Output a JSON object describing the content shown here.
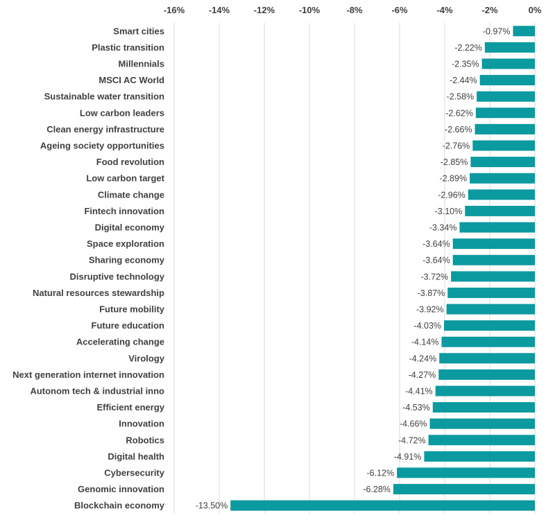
{
  "chart_data": {
    "type": "bar",
    "orientation": "horizontal",
    "categories": [
      "Smart cities",
      "Plastic transition",
      "Millennials",
      "MSCI AC World",
      "Sustainable water transition",
      "Low carbon leaders",
      "Clean energy infrastructure",
      "Ageing society opportunities",
      "Food revolution",
      "Low carbon target",
      "Climate change",
      "Fintech innovation",
      "Digital economy",
      "Space exploration",
      "Sharing economy",
      "Disruptive technology",
      "Natural resources stewardship",
      "Future mobility",
      "Future education",
      "Accelerating change",
      "Virology",
      "Next generation internet innovation",
      "Autonom tech & industrial inno",
      "Efficient energy",
      "Innovation",
      "Robotics",
      "Digital health",
      "Cybersecurity",
      "Genomic innovation",
      "Blockchain economy"
    ],
    "values": [
      -0.97,
      -2.22,
      -2.35,
      -2.44,
      -2.58,
      -2.62,
      -2.66,
      -2.76,
      -2.85,
      -2.89,
      -2.96,
      -3.1,
      -3.34,
      -3.64,
      -3.64,
      -3.72,
      -3.87,
      -3.92,
      -4.03,
      -4.14,
      -4.24,
      -4.27,
      -4.41,
      -4.53,
      -4.66,
      -4.72,
      -4.91,
      -6.12,
      -6.28,
      -13.5
    ],
    "data_labels": [
      "-0.97%",
      "-2.22%",
      "-2.35%",
      "-2.44%",
      "-2.58%",
      "-2.62%",
      "-2.66%",
      "-2.76%",
      "-2.85%",
      "-2.89%",
      "-2.96%",
      "-3.10%",
      "-3.34%",
      "-3.64%",
      "-3.64%",
      "-3.72%",
      "-3.87%",
      "-3.92%",
      "-4.03%",
      "-4.14%",
      "-4.24%",
      "-4.27%",
      "-4.41%",
      "-4.53%",
      "-4.66%",
      "-4.72%",
      "-4.91%",
      "-6.12%",
      "-6.28%",
      "-13.50%"
    ],
    "xlim": [
      -16,
      0
    ],
    "xticks": [
      -16,
      -14,
      -12,
      -10,
      -8,
      -6,
      -4,
      -2,
      0
    ],
    "xtick_labels": [
      "-16%",
      "-14%",
      "-12%",
      "-10%",
      "-8%",
      "-6%",
      "-4%",
      "-2%",
      "0%"
    ],
    "x_axis_position": "top",
    "grid": true,
    "bar_color": "#0b9a9f"
  }
}
